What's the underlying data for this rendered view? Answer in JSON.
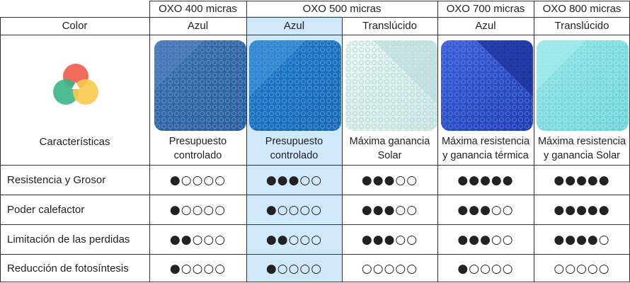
{
  "header": {
    "products": [
      "OXO 400 micras",
      "OXO 500 micras",
      "OXO 700 micras",
      "OXO 800 micras"
    ],
    "color_label": "Color",
    "colors": [
      "Azul",
      "Azul",
      "Translúcido",
      "Azul",
      "Translúcido"
    ]
  },
  "features_label": "Características",
  "descriptions": [
    "Presupuesto\ncontrolado",
    "Presupuesto\ncontrolado",
    "Máxima ganancia\nSolar",
    "Máxima resistencia\ny ganancia térmica",
    "Máxima resistencia\ny ganancia Solar"
  ],
  "rows": [
    {
      "label": "Resistencia y Grosor",
      "ratings": [
        "●○○○○",
        "●●●○○",
        "●●●○○",
        "●●●●●",
        "●●●●●"
      ]
    },
    {
      "label": "Poder calefactor",
      "ratings": [
        "●○○○○",
        "●○○○○",
        "●●●○○",
        "●●●○○",
        "●●●●●"
      ]
    },
    {
      "label": "Limitación de las perdidas",
      "ratings": [
        "●●○○○",
        "●●○○○",
        "●●●○○",
        "●●●○○",
        "●●●●○"
      ]
    },
    {
      "label": "Reducción de fotosíntesis",
      "ratings": [
        "●○○○○",
        "●○○○○",
        "○○○○○",
        "●○○○○",
        "○○○○○"
      ]
    }
  ],
  "colors_theme": {
    "highlight": "#cfe8fa",
    "azul": "#2f6fb8",
    "azul_bright": "#1f7fd0",
    "translucido": "#d8f0ee",
    "azul_dark": "#2a4fc9",
    "translucido_aqua": "#7fdde0"
  },
  "icons": [
    "color-venn-icon"
  ]
}
